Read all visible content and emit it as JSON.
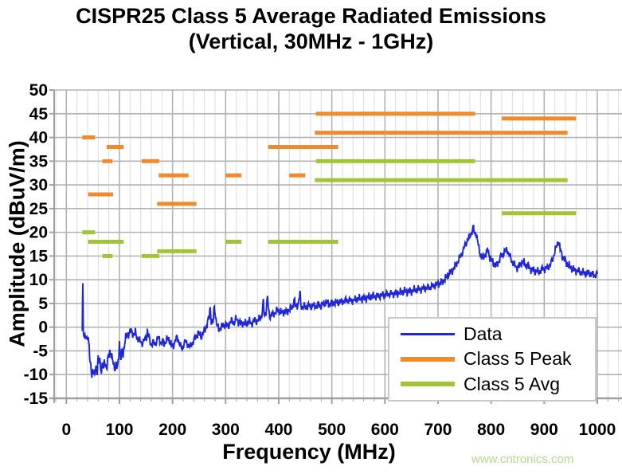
{
  "title": {
    "line1": "CISPR25 Class 5 Average Radiated Emissions",
    "line2": "(Vertical, 30MHz - 1GHz)"
  },
  "watermark": "www.cntronics.com",
  "chart_data": {
    "type": "line",
    "title": "CISPR25 Class 5 Average Radiated Emissions (Vertical, 30MHz - 1GHz)",
    "xlabel": "Frequency (MHz)",
    "ylabel": "Amplitude (dBuV/m)",
    "xlim": [
      0,
      1000
    ],
    "ylim": [
      -15,
      50
    ],
    "x_ticks": [
      0,
      100,
      200,
      300,
      400,
      500,
      600,
      700,
      800,
      900,
      1000
    ],
    "y_ticks": [
      -15,
      -10,
      -5,
      0,
      5,
      10,
      15,
      20,
      25,
      30,
      35,
      40,
      45,
      50
    ],
    "x_minor_step": 20,
    "grid": true,
    "legend_position": "lower-right-inside",
    "colors": {
      "data": "#2026d9",
      "peak": "#ef8b2c",
      "avg": "#a2c436",
      "grid_minor": "#dcdcdc",
      "grid_major": "#b3b3b3",
      "axis": "#a0a0a0",
      "text": "#000000"
    },
    "legend": [
      {
        "label": "Data",
        "color": "#2026d9",
        "thickness": 3
      },
      {
        "label": "Class 5 Peak",
        "color": "#ef8b2c",
        "thickness": 6
      },
      {
        "label": "Class 5 Avg",
        "color": "#a2c436",
        "thickness": 6
      }
    ],
    "limit_series": [
      {
        "name": "Class 5 Peak",
        "color": "#ef8b2c",
        "segments": [
          {
            "f_start": 30,
            "f_end": 54,
            "level_dBuVm": 40
          },
          {
            "f_start": 41,
            "f_end": 88,
            "level_dBuVm": 28
          },
          {
            "f_start": 68,
            "f_end": 87,
            "level_dBuVm": 35
          },
          {
            "f_start": 76,
            "f_end": 108,
            "level_dBuVm": 38
          },
          {
            "f_start": 142,
            "f_end": 175,
            "level_dBuVm": 35
          },
          {
            "f_start": 171,
            "f_end": 245,
            "level_dBuVm": 26
          },
          {
            "f_start": 174,
            "f_end": 230,
            "level_dBuVm": 32
          },
          {
            "f_start": 300,
            "f_end": 330,
            "level_dBuVm": 32
          },
          {
            "f_start": 380,
            "f_end": 512,
            "level_dBuVm": 38
          },
          {
            "f_start": 420,
            "f_end": 450,
            "level_dBuVm": 32
          },
          {
            "f_start": 468,
            "f_end": 944,
            "level_dBuVm": 41
          },
          {
            "f_start": 470,
            "f_end": 770,
            "level_dBuVm": 45
          },
          {
            "f_start": 820,
            "f_end": 960,
            "level_dBuVm": 44
          }
        ]
      },
      {
        "name": "Class 5 Avg",
        "color": "#a2c436",
        "segments": [
          {
            "f_start": 30,
            "f_end": 54,
            "level_dBuVm": 20
          },
          {
            "f_start": 41,
            "f_end": 108,
            "level_dBuVm": 18
          },
          {
            "f_start": 68,
            "f_end": 87,
            "level_dBuVm": 15
          },
          {
            "f_start": 142,
            "f_end": 175,
            "level_dBuVm": 15
          },
          {
            "f_start": 171,
            "f_end": 245,
            "level_dBuVm": 16
          },
          {
            "f_start": 300,
            "f_end": 330,
            "level_dBuVm": 18
          },
          {
            "f_start": 380,
            "f_end": 512,
            "level_dBuVm": 18
          },
          {
            "f_start": 468,
            "f_end": 944,
            "level_dBuVm": 31
          },
          {
            "f_start": 470,
            "f_end": 770,
            "level_dBuVm": 35
          },
          {
            "f_start": 820,
            "f_end": 960,
            "level_dBuVm": 24
          }
        ]
      }
    ],
    "data_series": {
      "name": "Data",
      "color": "#2026d9",
      "points": [
        [
          30,
          -0.5
        ],
        [
          30.5,
          5
        ],
        [
          31,
          9
        ],
        [
          31.5,
          6
        ],
        [
          32,
          0
        ],
        [
          33,
          -2
        ],
        [
          34,
          -2.5
        ],
        [
          36,
          -2
        ],
        [
          38,
          -2.5
        ],
        [
          40,
          -1.5
        ],
        [
          41,
          -2.5
        ],
        [
          43,
          -4
        ],
        [
          44,
          -6.5
        ],
        [
          45,
          -8.5
        ],
        [
          46,
          -7.5
        ],
        [
          47,
          -9
        ],
        [
          48,
          -10
        ],
        [
          50,
          -9
        ],
        [
          52,
          -10.3
        ],
        [
          54,
          -9.5
        ],
        [
          56,
          -8
        ],
        [
          58,
          -9.2
        ],
        [
          60,
          -6.5
        ],
        [
          61,
          -7.8
        ],
        [
          63,
          -6.8
        ],
        [
          64,
          -8.2
        ],
        [
          66,
          -9
        ],
        [
          68,
          -8
        ],
        [
          70,
          -8.8
        ],
        [
          72,
          -7.2
        ],
        [
          74,
          -7.8
        ],
        [
          76,
          -8.6
        ],
        [
          78,
          -7
        ],
        [
          80,
          -5.8
        ],
        [
          82,
          -5
        ],
        [
          84,
          -5.6
        ],
        [
          86,
          -6.6
        ],
        [
          88,
          -7.4
        ],
        [
          90,
          -8.2
        ],
        [
          92,
          -8.6
        ],
        [
          94,
          -8
        ],
        [
          96,
          -8.8
        ],
        [
          98,
          -7
        ],
        [
          100,
          -3
        ],
        [
          101,
          -5.5
        ],
        [
          103,
          -6.5
        ],
        [
          105,
          -5
        ],
        [
          107,
          -5.8
        ],
        [
          109,
          -3.8
        ],
        [
          111,
          -2.6
        ],
        [
          113,
          -2
        ],
        [
          115,
          -1.6
        ],
        [
          118,
          -1.2
        ],
        [
          121,
          -0.8
        ],
        [
          124,
          -1
        ],
        [
          127,
          -1.6
        ],
        [
          130,
          -1.2
        ],
        [
          133,
          -2.2
        ],
        [
          136,
          -2.6
        ],
        [
          139,
          -3
        ],
        [
          142,
          -3.4
        ],
        [
          145,
          -3
        ],
        [
          148,
          -2.6
        ],
        [
          151,
          -2
        ],
        [
          153,
          -0.8
        ],
        [
          155,
          -2
        ],
        [
          158,
          -3.2
        ],
        [
          161,
          -3.6
        ],
        [
          164,
          -3.2
        ],
        [
          167,
          -3.6
        ],
        [
          170,
          -3
        ],
        [
          173,
          -2.2
        ],
        [
          176,
          -2.8
        ],
        [
          179,
          -3.4
        ],
        [
          182,
          -3
        ],
        [
          185,
          -3.4
        ],
        [
          188,
          -2.8
        ],
        [
          191,
          -2.4
        ],
        [
          194,
          -2.8
        ],
        [
          197,
          -3.6
        ],
        [
          200,
          -4.2
        ],
        [
          203,
          -3.4
        ],
        [
          206,
          -2.6
        ],
        [
          209,
          -2.2
        ],
        [
          212,
          -3
        ],
        [
          215,
          -4
        ],
        [
          218,
          -4.6
        ],
        [
          221,
          -3.6
        ],
        [
          224,
          -3
        ],
        [
          227,
          -3.4
        ],
        [
          230,
          -3.8
        ],
        [
          233,
          -4.2
        ],
        [
          236,
          -3.6
        ],
        [
          239,
          -3
        ],
        [
          242,
          -2.4
        ],
        [
          245,
          -1.8
        ],
        [
          248,
          -1.2
        ],
        [
          251,
          -1.6
        ],
        [
          254,
          -2
        ],
        [
          257,
          -1.4
        ],
        [
          260,
          -0.8
        ],
        [
          263,
          0
        ],
        [
          266,
          1
        ],
        [
          269,
          2.2
        ],
        [
          271,
          4.2
        ],
        [
          273,
          1.4
        ],
        [
          276,
          0.6
        ],
        [
          279,
          4.8
        ],
        [
          281,
          2.2
        ],
        [
          284,
          0.2
        ],
        [
          287,
          -0.4
        ],
        [
          290,
          -0.2
        ],
        [
          293,
          0.2
        ],
        [
          296,
          0.4
        ],
        [
          300,
          0.6
        ],
        [
          304,
          0.2
        ],
        [
          308,
          0.8
        ],
        [
          312,
          1.4
        ],
        [
          316,
          0.8
        ],
        [
          320,
          1.8
        ],
        [
          324,
          1.2
        ],
        [
          328,
          0.8
        ],
        [
          332,
          1
        ],
        [
          336,
          0.6
        ],
        [
          340,
          0.8
        ],
        [
          344,
          1.2
        ],
        [
          348,
          0.8
        ],
        [
          352,
          1.2
        ],
        [
          356,
          1.6
        ],
        [
          360,
          1.2
        ],
        [
          364,
          1.8
        ],
        [
          368,
          2.4
        ],
        [
          371,
          5.2
        ],
        [
          373,
          2.6
        ],
        [
          376,
          3.2
        ],
        [
          379,
          6.4
        ],
        [
          381,
          3.4
        ],
        [
          384,
          2.2
        ],
        [
          387,
          2.6
        ],
        [
          390,
          2.8
        ],
        [
          394,
          3.2
        ],
        [
          398,
          3.6
        ],
        [
          402,
          3.2
        ],
        [
          406,
          3
        ],
        [
          410,
          3.4
        ],
        [
          414,
          3.2
        ],
        [
          418,
          3.6
        ],
        [
          422,
          3.8
        ],
        [
          426,
          4.2
        ],
        [
          429,
          6
        ],
        [
          431,
          4.4
        ],
        [
          434,
          4.6
        ],
        [
          437,
          5
        ],
        [
          440,
          7
        ],
        [
          442,
          4.6
        ],
        [
          445,
          4.2
        ],
        [
          448,
          4.4
        ],
        [
          452,
          4.2
        ],
        [
          456,
          4.6
        ],
        [
          460,
          4.3
        ],
        [
          465,
          4.6
        ],
        [
          470,
          4.4
        ],
        [
          475,
          4.8
        ],
        [
          480,
          4.5
        ],
        [
          485,
          4.9
        ],
        [
          490,
          5.2
        ],
        [
          495,
          4.9
        ],
        [
          500,
          5.1
        ],
        [
          510,
          5.2
        ],
        [
          520,
          5.4
        ],
        [
          530,
          5.7
        ],
        [
          540,
          5.6
        ],
        [
          550,
          6
        ],
        [
          560,
          6.1
        ],
        [
          570,
          6.3
        ],
        [
          580,
          6.6
        ],
        [
          590,
          6.6
        ],
        [
          600,
          6.9
        ],
        [
          610,
          7
        ],
        [
          620,
          7.1
        ],
        [
          630,
          7.3
        ],
        [
          640,
          7.6
        ],
        [
          650,
          7.6
        ],
        [
          660,
          7.9
        ],
        [
          670,
          8.1
        ],
        [
          680,
          8.3
        ],
        [
          690,
          8.6
        ],
        [
          700,
          9.1
        ],
        [
          708,
          9.6
        ],
        [
          714,
          10.2
        ],
        [
          719,
          11
        ],
        [
          724,
          11.6
        ],
        [
          728,
          12.2
        ],
        [
          733,
          13
        ],
        [
          738,
          14
        ],
        [
          743,
          15
        ],
        [
          748,
          16.4
        ],
        [
          752,
          17.6
        ],
        [
          756,
          18.4
        ],
        [
          760,
          19.2
        ],
        [
          764,
          20.2
        ],
        [
          767,
          21
        ],
        [
          769,
          19.4
        ],
        [
          771,
          20.2
        ],
        [
          774,
          18.4
        ],
        [
          777,
          16.6
        ],
        [
          780,
          15.2
        ],
        [
          783,
          14.6
        ],
        [
          787,
          15
        ],
        [
          791,
          15.8
        ],
        [
          794,
          16.2
        ],
        [
          798,
          14.6
        ],
        [
          802,
          13.8
        ],
        [
          806,
          13.2
        ],
        [
          810,
          13
        ],
        [
          814,
          13.8
        ],
        [
          818,
          14.8
        ],
        [
          822,
          15.4
        ],
        [
          826,
          16
        ],
        [
          830,
          16.4
        ],
        [
          834,
          15.2
        ],
        [
          838,
          14.2
        ],
        [
          842,
          13.4
        ],
        [
          846,
          12.8
        ],
        [
          850,
          12.6
        ],
        [
          854,
          13
        ],
        [
          858,
          13.8
        ],
        [
          862,
          13.4
        ],
        [
          866,
          13
        ],
        [
          870,
          12.8
        ],
        [
          874,
          12.4
        ],
        [
          878,
          12.1
        ],
        [
          882,
          11.9
        ],
        [
          886,
          11.7
        ],
        [
          890,
          11.6
        ],
        [
          894,
          12
        ],
        [
          898,
          12.4
        ],
        [
          902,
          12.2
        ],
        [
          906,
          12.6
        ],
        [
          910,
          13
        ],
        [
          914,
          13.8
        ],
        [
          918,
          15.2
        ],
        [
          922,
          16.6
        ],
        [
          925,
          17.6
        ],
        [
          927,
          18.2
        ],
        [
          930,
          16.4
        ],
        [
          933,
          15.4
        ],
        [
          936,
          14.6
        ],
        [
          940,
          14
        ],
        [
          944,
          13.2
        ],
        [
          948,
          12.7
        ],
        [
          952,
          12.4
        ],
        [
          956,
          12.1
        ],
        [
          960,
          12
        ],
        [
          964,
          11.9
        ],
        [
          968,
          11.6
        ],
        [
          972,
          11.5
        ],
        [
          976,
          11.5
        ],
        [
          980,
          11.3
        ],
        [
          984,
          11.5
        ],
        [
          988,
          11.2
        ],
        [
          992,
          11.1
        ],
        [
          996,
          11
        ],
        [
          1000,
          11.2
        ]
      ]
    }
  }
}
